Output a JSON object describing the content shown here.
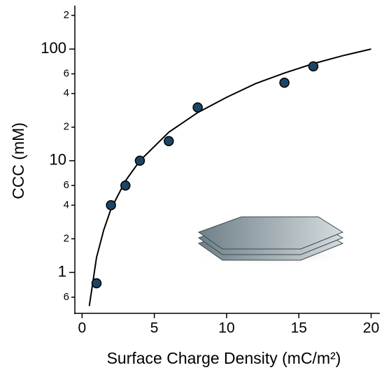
{
  "chart_data": {
    "type": "scatter",
    "x_label": "Surface Charge Density (mC/m²)",
    "y_label": "CCC (mM)",
    "log_y": true,
    "xlim": [
      -0.5,
      20.6
    ],
    "xticks": [
      0,
      5,
      10,
      15,
      20
    ],
    "ylim": [
      0.43,
      245
    ],
    "yticks": [
      {
        "value": 0.6,
        "label": "6"
      },
      1,
      {
        "value": 2,
        "label": "2"
      },
      {
        "value": 4,
        "label": "4"
      },
      {
        "value": 6,
        "label": "6"
      },
      10,
      {
        "value": 20,
        "label": "2"
      },
      {
        "value": 40,
        "label": "4"
      },
      {
        "value": 60,
        "label": "6"
      },
      100,
      {
        "value": 200,
        "label": "2"
      }
    ],
    "series": [
      {
        "type": "scatter",
        "color": "#1b4565",
        "x": [
          1,
          2,
          3,
          4,
          6,
          8,
          14,
          16
        ],
        "values": [
          0.8,
          4,
          6,
          10,
          15,
          30,
          50,
          70
        ]
      },
      {
        "type": "line",
        "color": "#000000",
        "x": [
          0.5,
          1,
          1.5,
          2,
          3,
          4,
          6,
          8,
          10,
          12,
          14,
          16,
          18,
          20
        ],
        "values": [
          0.5,
          1.36,
          2.4,
          3.7,
          6.6,
          10,
          18,
          27,
          37,
          49,
          61,
          74,
          87,
          100
        ]
      }
    ]
  }
}
